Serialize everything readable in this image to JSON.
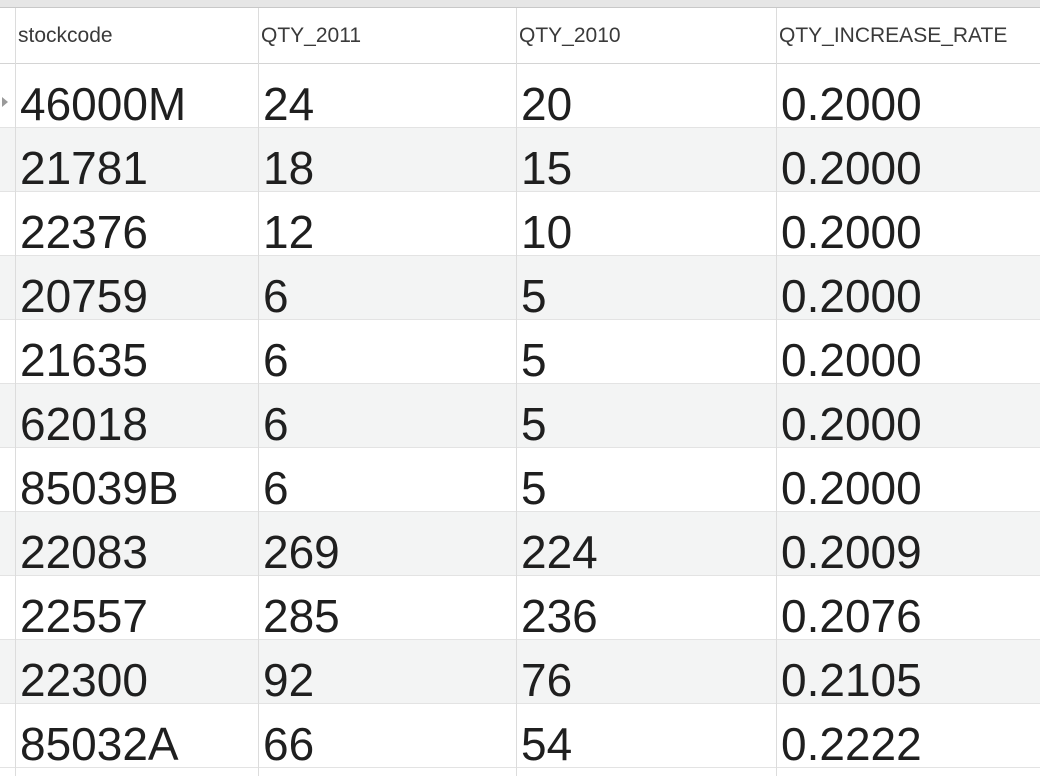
{
  "table": {
    "columns": [
      "stockcode",
      "QTY_2011",
      "QTY_2010",
      "QTY_INCREASE_RATE"
    ],
    "rows": [
      [
        "46000M",
        "24",
        "20",
        "0.2000"
      ],
      [
        "21781",
        "18",
        "15",
        "0.2000"
      ],
      [
        "22376",
        "12",
        "10",
        "0.2000"
      ],
      [
        "20759",
        "6",
        "5",
        "0.2000"
      ],
      [
        "21635",
        "6",
        "5",
        "0.2000"
      ],
      [
        "62018",
        "6",
        "5",
        "0.2000"
      ],
      [
        "85039B",
        "6",
        "5",
        "0.2000"
      ],
      [
        "22083",
        "269",
        "224",
        "0.2009"
      ],
      [
        "22557",
        "285",
        "236",
        "0.2076"
      ],
      [
        "22300",
        "92",
        "76",
        "0.2105"
      ],
      [
        "85032A",
        "66",
        "54",
        "0.2222"
      ]
    ]
  },
  "icons": {
    "current_row_marker": "triangle-right-icon"
  },
  "colors": {
    "alt_row_background": "#f3f4f4",
    "grid_line": "#dcdcdc",
    "text": "#1f1f1f"
  }
}
